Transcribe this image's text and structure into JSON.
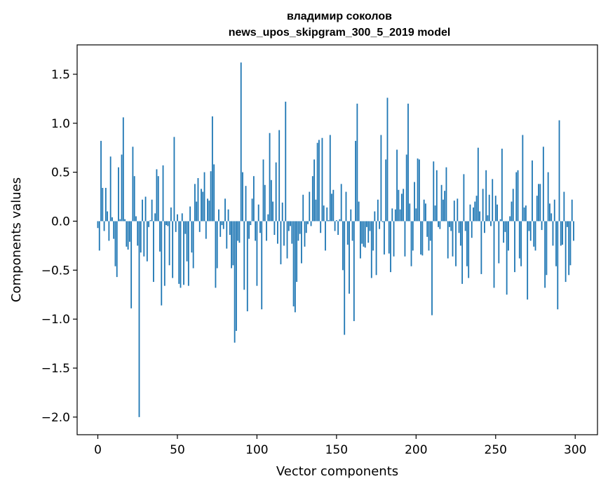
{
  "chart_data": {
    "type": "bar",
    "title": "владимир соколов",
    "subtitle": "news_upos_skipgram_300_5_2019 model",
    "xlabel": "Vector components",
    "ylabel": "Components values",
    "xlim": [
      -13,
      314
    ],
    "ylim": [
      -2.18,
      1.8
    ],
    "x_ticks": [
      0,
      50,
      100,
      150,
      200,
      250,
      300
    ],
    "x_tick_labels": [
      "0",
      "50",
      "100",
      "150",
      "200",
      "250",
      "300"
    ],
    "y_ticks": [
      -2.0,
      -1.5,
      -1.0,
      -0.5,
      0.0,
      0.5,
      1.0,
      1.5
    ],
    "y_tick_labels": [
      "−2.0",
      "−1.5",
      "−1.0",
      "−0.5",
      "0.0",
      "0.5",
      "1.0",
      "1.5"
    ],
    "grid": false,
    "bar_color": "#1f77b4",
    "values": [
      -0.07,
      -0.3,
      0.82,
      0.34,
      -0.1,
      0.34,
      0.1,
      -0.2,
      0.66,
      0.04,
      -0.18,
      -0.46,
      -0.57,
      0.55,
      0.02,
      0.68,
      1.06,
      0.02,
      -0.26,
      -0.29,
      -0.21,
      -0.89,
      0.76,
      0.46,
      0.05,
      -0.25,
      -2.0,
      -0.32,
      0.22,
      -0.36,
      0.25,
      -0.41,
      -0.06,
      0.01,
      0.22,
      -0.62,
      0.08,
      0.53,
      0.46,
      -0.31,
      -0.86,
      0.57,
      -0.66,
      -0.04,
      -0.05,
      -0.45,
      0.14,
      -0.58,
      0.86,
      -0.11,
      0.07,
      -0.64,
      -0.68,
      0.08,
      -0.65,
      -0.13,
      -0.41,
      -0.66,
      0.15,
      -0.32,
      -0.48,
      0.38,
      0.2,
      0.44,
      -0.11,
      0.33,
      0.3,
      0.5,
      -0.18,
      0.23,
      0.21,
      0.51,
      1.07,
      0.58,
      -0.68,
      -0.48,
      0.12,
      -0.16,
      -0.04,
      -0.08,
      0.23,
      -0.28,
      0.12,
      -0.14,
      -0.48,
      -0.45,
      -1.24,
      -1.12,
      -0.2,
      -0.22,
      1.62,
      0.5,
      -0.7,
      0.36,
      -0.92,
      -0.18,
      -0.04,
      0.23,
      0.46,
      -0.2,
      -0.66,
      0.17,
      -0.12,
      -0.9,
      0.63,
      0.37,
      -0.2,
      0.07,
      0.9,
      0.42,
      0.2,
      -0.14,
      0.6,
      -0.23,
      0.93,
      -0.44,
      0.19,
      -0.25,
      1.22,
      -0.38,
      -0.1,
      -0.05,
      -0.23,
      -0.87,
      -0.93,
      -0.62,
      -0.2,
      -0.13,
      -0.43,
      0.27,
      -0.26,
      -0.12,
      -0.03,
      0.3,
      -0.05,
      0.46,
      0.63,
      0.22,
      0.8,
      0.83,
      -0.12,
      0.85,
      0.16,
      -0.3,
      0.14,
      0.01,
      0.88,
      0.28,
      0.32,
      -0.1,
      0.01,
      -0.14,
      0.02,
      0.38,
      -0.5,
      -1.16,
      0.3,
      -0.24,
      -0.74,
      0.12,
      -0.2,
      -1.02,
      0.82,
      1.2,
      0.2,
      -0.38,
      -0.23,
      -0.26,
      -0.27,
      -0.06,
      -0.22,
      -0.1,
      -0.58,
      -0.3,
      0.1,
      -0.55,
      0.22,
      -0.08,
      0.88,
      -0.01,
      -0.34,
      0.63,
      1.26,
      -0.33,
      -0.52,
      0.13,
      -0.36,
      0.12,
      0.73,
      0.32,
      0.12,
      0.28,
      0.33,
      -0.36,
      0.68,
      1.2,
      0.18,
      -0.46,
      -0.3,
      0.4,
      0.13,
      0.64,
      0.63,
      -0.34,
      -0.35,
      0.22,
      0.18,
      -0.16,
      -0.3,
      -0.2,
      -0.96,
      0.61,
      0.16,
      0.52,
      -0.06,
      -0.08,
      0.37,
      0.22,
      0.31,
      0.55,
      -0.38,
      -0.06,
      -0.1,
      -0.36,
      0.21,
      -0.46,
      0.23,
      -0.12,
      -0.25,
      -0.64,
      0.48,
      -0.1,
      -0.46,
      -0.58,
      0.17,
      -0.17,
      0.14,
      0.2,
      0.26,
      0.75,
      0.1,
      -0.54,
      0.33,
      -0.12,
      0.52,
      0.06,
      0.27,
      -0.05,
      0.43,
      -0.68,
      0.26,
      0.17,
      -0.43,
      0.02,
      0.74,
      -0.22,
      -0.11,
      -0.75,
      -0.3,
      0.05,
      0.2,
      0.33,
      -0.52,
      0.5,
      0.52,
      -0.38,
      -0.46,
      0.88,
      0.14,
      0.16,
      -0.8,
      -0.1,
      -0.2,
      0.62,
      -0.26,
      -0.3,
      0.26,
      0.38,
      0.38,
      -0.09,
      0.76,
      -0.68,
      -0.55,
      0.5,
      0.18,
      0.08,
      -0.25,
      0.22,
      -0.46,
      -0.9,
      1.03,
      -0.25,
      -0.24,
      0.3,
      -0.62,
      -0.06,
      -0.55,
      -0.45,
      0.22,
      -0.2
    ]
  }
}
